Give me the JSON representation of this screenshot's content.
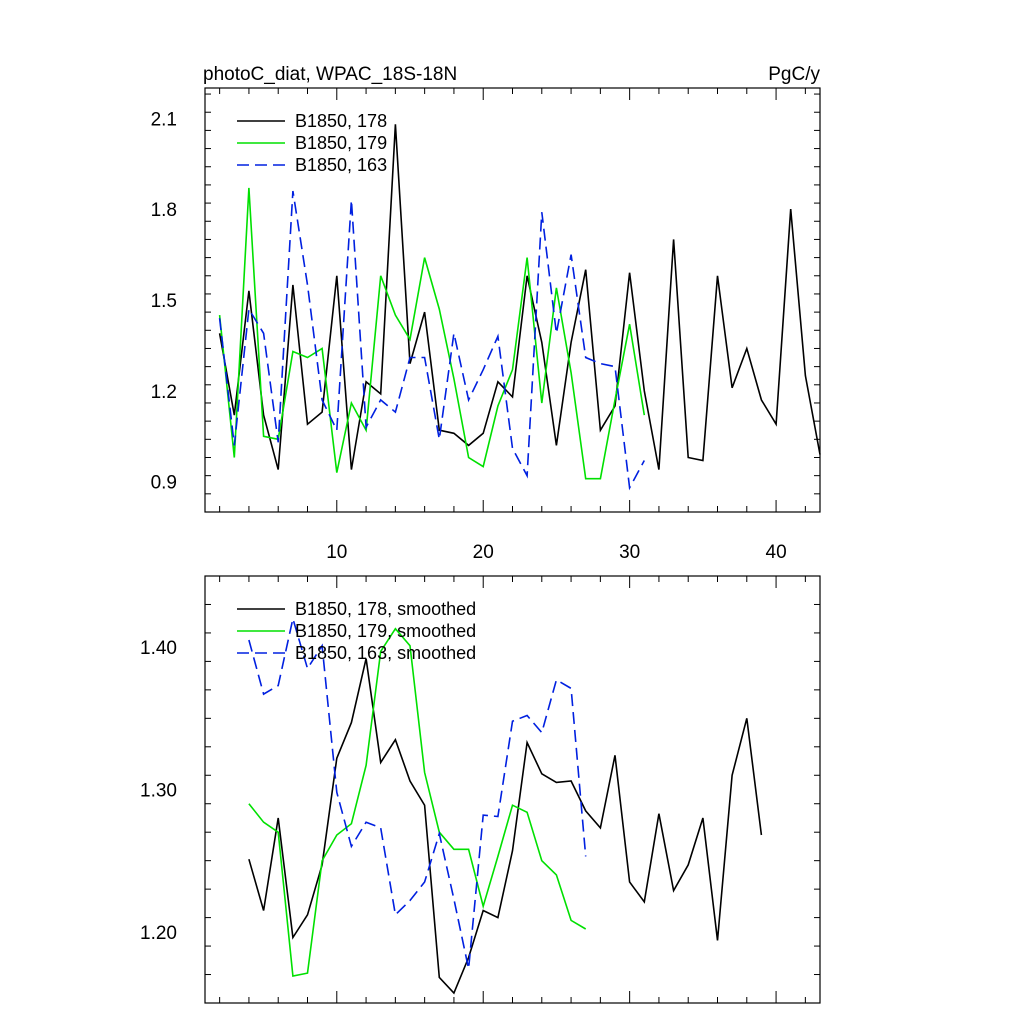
{
  "chart_data": [
    {
      "type": "line",
      "title": "photoC_diat, WPAC_18S-18N",
      "units": "PgC/y",
      "xlabel": "",
      "ylabel": "",
      "xlim": [
        1,
        43
      ],
      "ylim": [
        0.8,
        2.2
      ],
      "x_ticks": [
        10,
        20,
        30,
        40
      ],
      "x_tick_labels": [
        "10",
        "20",
        "30",
        "40"
      ],
      "y_ticks": [
        0.9,
        1.2,
        1.5,
        1.8,
        2.1
      ],
      "y_tick_labels": [
        "0.9",
        "1.2",
        "1.5",
        "1.8",
        "2.1"
      ],
      "legend_position": "top-left",
      "series": [
        {
          "name": "B1850, 178",
          "color": "#000000",
          "dash": "solid",
          "x_start": 2,
          "values": [
            1.39,
            1.12,
            1.53,
            1.12,
            0.94,
            1.55,
            1.09,
            1.13,
            1.58,
            0.94,
            1.23,
            1.19,
            2.08,
            1.29,
            1.46,
            1.07,
            1.06,
            1.02,
            1.06,
            1.23,
            1.18,
            1.58,
            1.36,
            1.02,
            1.36,
            1.6,
            1.07,
            1.15,
            1.59,
            1.2,
            0.94,
            1.7,
            0.98,
            0.97,
            1.58,
            1.21,
            1.34,
            1.17,
            1.09,
            1.8,
            1.25,
            0.99
          ]
        },
        {
          "name": "B1850, 179",
          "color": "#00e000",
          "dash": "solid",
          "x_start": 2,
          "values": [
            1.45,
            0.98,
            1.87,
            1.05,
            1.04,
            1.33,
            1.31,
            1.34,
            0.93,
            1.16,
            1.07,
            1.58,
            1.45,
            1.37,
            1.64,
            1.47,
            1.24,
            0.98,
            0.95,
            1.15,
            1.27,
            1.64,
            1.16,
            1.54,
            1.26,
            0.91,
            0.91,
            1.17,
            1.42,
            1.12
          ]
        },
        {
          "name": "B1850, 163",
          "color": "#0020e0",
          "dash": "dashed",
          "x_start": 2,
          "values": [
            1.44,
            1.02,
            1.47,
            1.39,
            1.03,
            1.86,
            1.55,
            1.17,
            1.07,
            1.83,
            1.08,
            1.17,
            1.13,
            1.31,
            1.31,
            1.04,
            1.39,
            1.17,
            1.27,
            1.38,
            1.01,
            0.92,
            1.79,
            1.39,
            1.65,
            1.31,
            1.29,
            1.28,
            0.88,
            0.97
          ]
        }
      ]
    },
    {
      "type": "line",
      "title": "",
      "xlabel": "",
      "ylabel": "",
      "xlim": [
        1,
        43
      ],
      "ylim": [
        1.15,
        1.45
      ],
      "x_ticks": [
        10,
        20,
        30,
        40
      ],
      "x_tick_labels": [],
      "y_ticks": [
        1.2,
        1.3,
        1.4
      ],
      "y_tick_labels": [
        "1.20",
        "1.30",
        "1.40"
      ],
      "legend_position": "top-left",
      "series": [
        {
          "name": "B1850, 178, smoothed",
          "color": "#000000",
          "dash": "solid",
          "x_start": 4,
          "values": [
            1.251,
            1.215,
            1.28,
            1.196,
            1.212,
            1.247,
            1.322,
            1.347,
            1.392,
            1.319,
            1.335,
            1.306,
            1.289,
            1.168,
            1.157,
            1.182,
            1.215,
            1.21,
            1.257,
            1.333,
            1.311,
            1.305,
            1.306,
            1.285,
            1.273,
            1.324,
            1.235,
            1.221,
            1.283,
            1.229,
            1.247,
            1.28,
            1.194,
            1.31,
            1.35,
            1.268
          ]
        },
        {
          "name": "B1850, 179, smoothed",
          "color": "#00e000",
          "dash": "solid",
          "x_start": 4,
          "values": [
            1.29,
            1.277,
            1.27,
            1.169,
            1.171,
            1.25,
            1.268,
            1.276,
            1.317,
            1.397,
            1.413,
            1.401,
            1.312,
            1.27,
            1.258,
            1.258,
            1.218,
            1.253,
            1.289,
            1.284,
            1.25,
            1.24,
            1.208,
            1.202
          ]
        },
        {
          "name": "B1850, 163, smoothed",
          "color": "#0020e0",
          "dash": "dashed",
          "x_start": 4,
          "values": [
            1.405,
            1.367,
            1.373,
            1.42,
            1.385,
            1.401,
            1.298,
            1.26,
            1.277,
            1.273,
            1.212,
            1.222,
            1.235,
            1.269,
            1.223,
            1.174,
            1.282,
            1.281,
            1.348,
            1.352,
            1.34,
            1.377,
            1.371,
            1.253
          ]
        }
      ]
    }
  ]
}
